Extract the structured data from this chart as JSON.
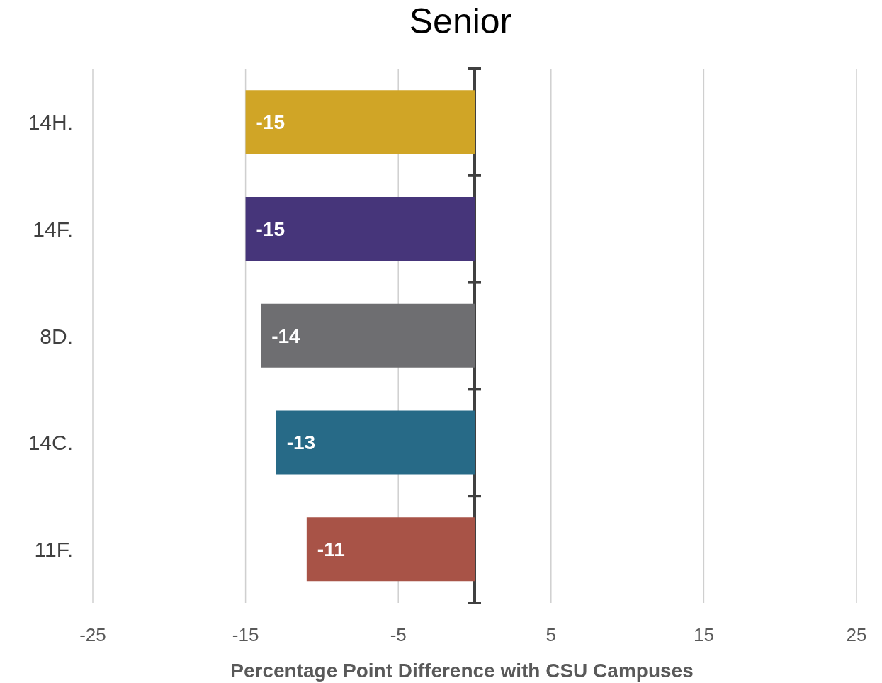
{
  "chart_data": {
    "type": "bar",
    "orientation": "horizontal",
    "title": "Senior",
    "xlabel": "Percentage Point Difference with CSU Campuses",
    "categories": [
      "14H.",
      "14F.",
      "8D.",
      "14C.",
      "11F."
    ],
    "values": [
      -15,
      -15,
      -14,
      -13,
      -11
    ],
    "colors": [
      "#d0a526",
      "#46357a",
      "#6e6e71",
      "#276a87",
      "#a85347"
    ],
    "xlim": [
      -25,
      25
    ],
    "xticks": [
      -25,
      -15,
      -5,
      5,
      15,
      25
    ],
    "grid": "x",
    "data_labels": true
  }
}
